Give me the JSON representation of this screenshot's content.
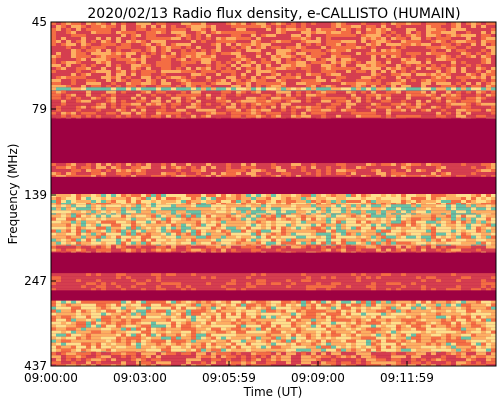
{
  "chart_data": {
    "type": "heatmap",
    "title": "2020/02/13  Radio flux density, e-CALLISTO (HUMAIN)",
    "xlabel": "Time (UT)",
    "ylabel": "Frequency (MHz)",
    "x_ticks": [
      "09:00:00",
      "09:03:00",
      "09:05:59",
      "09:09:00",
      "09:11:59"
    ],
    "y_ticks": [
      "45",
      "79",
      "139",
      "247",
      "437"
    ],
    "colormap": "Spectral_r",
    "colors": {
      "background_band": "#9e0142",
      "low": "#d53e4f",
      "mid": "#f46d43",
      "high": "#fdae61",
      "peak": "#fee08b",
      "max": "#66c2a5"
    }
  }
}
